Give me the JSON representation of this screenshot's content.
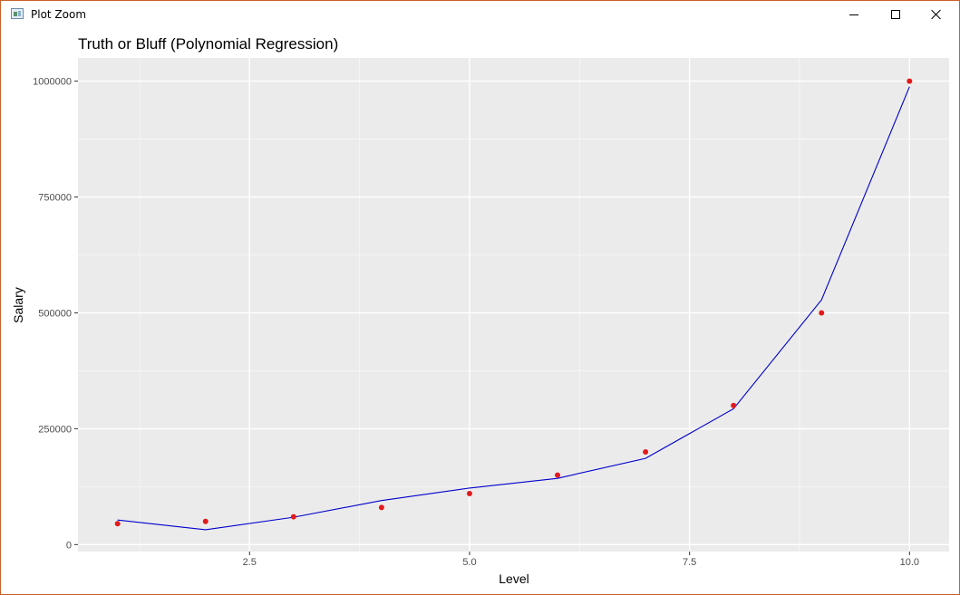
{
  "window": {
    "title": "Plot Zoom",
    "controls": [
      "minimize",
      "maximize",
      "close"
    ]
  },
  "chart_data": {
    "type": "scatter",
    "title": "Truth or Bluff (Polynomial Regression)",
    "xlabel": "Level",
    "ylabel": "Salary",
    "xlim": [
      0.55,
      10.45
    ],
    "ylim": [
      -15000,
      1050000
    ],
    "x_ticks": [
      2.5,
      5.0,
      7.5,
      10.0
    ],
    "x_tick_labels": [
      "2.5",
      "5.0",
      "7.5",
      "10.0"
    ],
    "y_ticks": [
      0,
      250000,
      500000,
      750000,
      1000000
    ],
    "y_tick_labels": [
      "0",
      "250000",
      "500000",
      "750000",
      "1000000"
    ],
    "grid": true,
    "background": "#EBEBEB",
    "series": [
      {
        "kind": "points",
        "color": "#E31A1C",
        "x": [
          1,
          2,
          3,
          4,
          5,
          6,
          7,
          8,
          9,
          10
        ],
        "y": [
          45000,
          50000,
          60000,
          80000,
          110000,
          150000,
          200000,
          300000,
          500000,
          1000000
        ]
      },
      {
        "kind": "line",
        "color": "#0000CC",
        "x": [
          1,
          2,
          3,
          4,
          5,
          6,
          7,
          8,
          9,
          10
        ],
        "y": [
          53000,
          32000,
          59000,
          95000,
          122000,
          143000,
          186000,
          293000,
          528000,
          988000
        ]
      }
    ]
  }
}
